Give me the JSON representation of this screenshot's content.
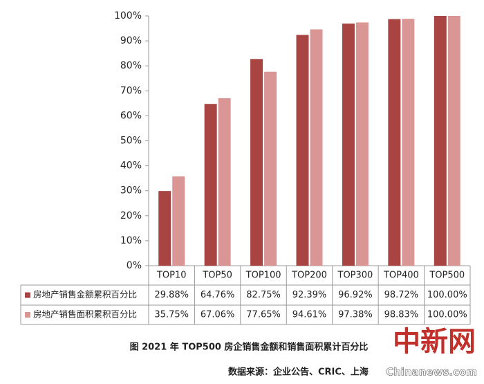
{
  "chart_data": {
    "type": "bar",
    "categories": [
      "TOP10",
      "TOP50",
      "TOP100",
      "TOP200",
      "TOP300",
      "TOP400",
      "TOP500"
    ],
    "series": [
      {
        "name": "房地产销售金额累积百分比",
        "color": "#a84442",
        "values": [
          29.88,
          64.76,
          82.75,
          92.39,
          96.92,
          98.72,
          100
        ],
        "value_labels": [
          "29.88%",
          "64.76%",
          "82.75%",
          "92.39%",
          "96.92%",
          "98.72%",
          "100.00%"
        ]
      },
      {
        "name": "房地产销售面积累积百分比",
        "color": "#d99694",
        "values": [
          35.75,
          67.06,
          77.65,
          94.61,
          97.38,
          98.83,
          100
        ],
        "value_labels": [
          "35.75%",
          "67.06%",
          "77.65%",
          "94.61%",
          "97.38%",
          "98.83%",
          "100.00%"
        ]
      }
    ],
    "ylim": [
      0,
      100
    ],
    "yticks": [
      {
        "value": 0,
        "label": "0%"
      },
      {
        "value": 10,
        "label": "10%"
      },
      {
        "value": 20,
        "label": "20%"
      },
      {
        "value": 30,
        "label": "30%"
      },
      {
        "value": 40,
        "label": "40%"
      },
      {
        "value": 50,
        "label": "50%"
      },
      {
        "value": 60,
        "label": "60%"
      },
      {
        "value": 70,
        "label": "70%"
      },
      {
        "value": 80,
        "label": "80%"
      },
      {
        "value": 90,
        "label": "90%"
      },
      {
        "value": 100,
        "label": "100%"
      }
    ],
    "grid": false,
    "caption": "图  2021 年 TOP500 房企销售金额和销售面积累计百分比",
    "source": "数据来源：企业公告、CRIC、上海",
    "watermark": [
      "中新网",
      "Chinanews.com"
    ]
  }
}
